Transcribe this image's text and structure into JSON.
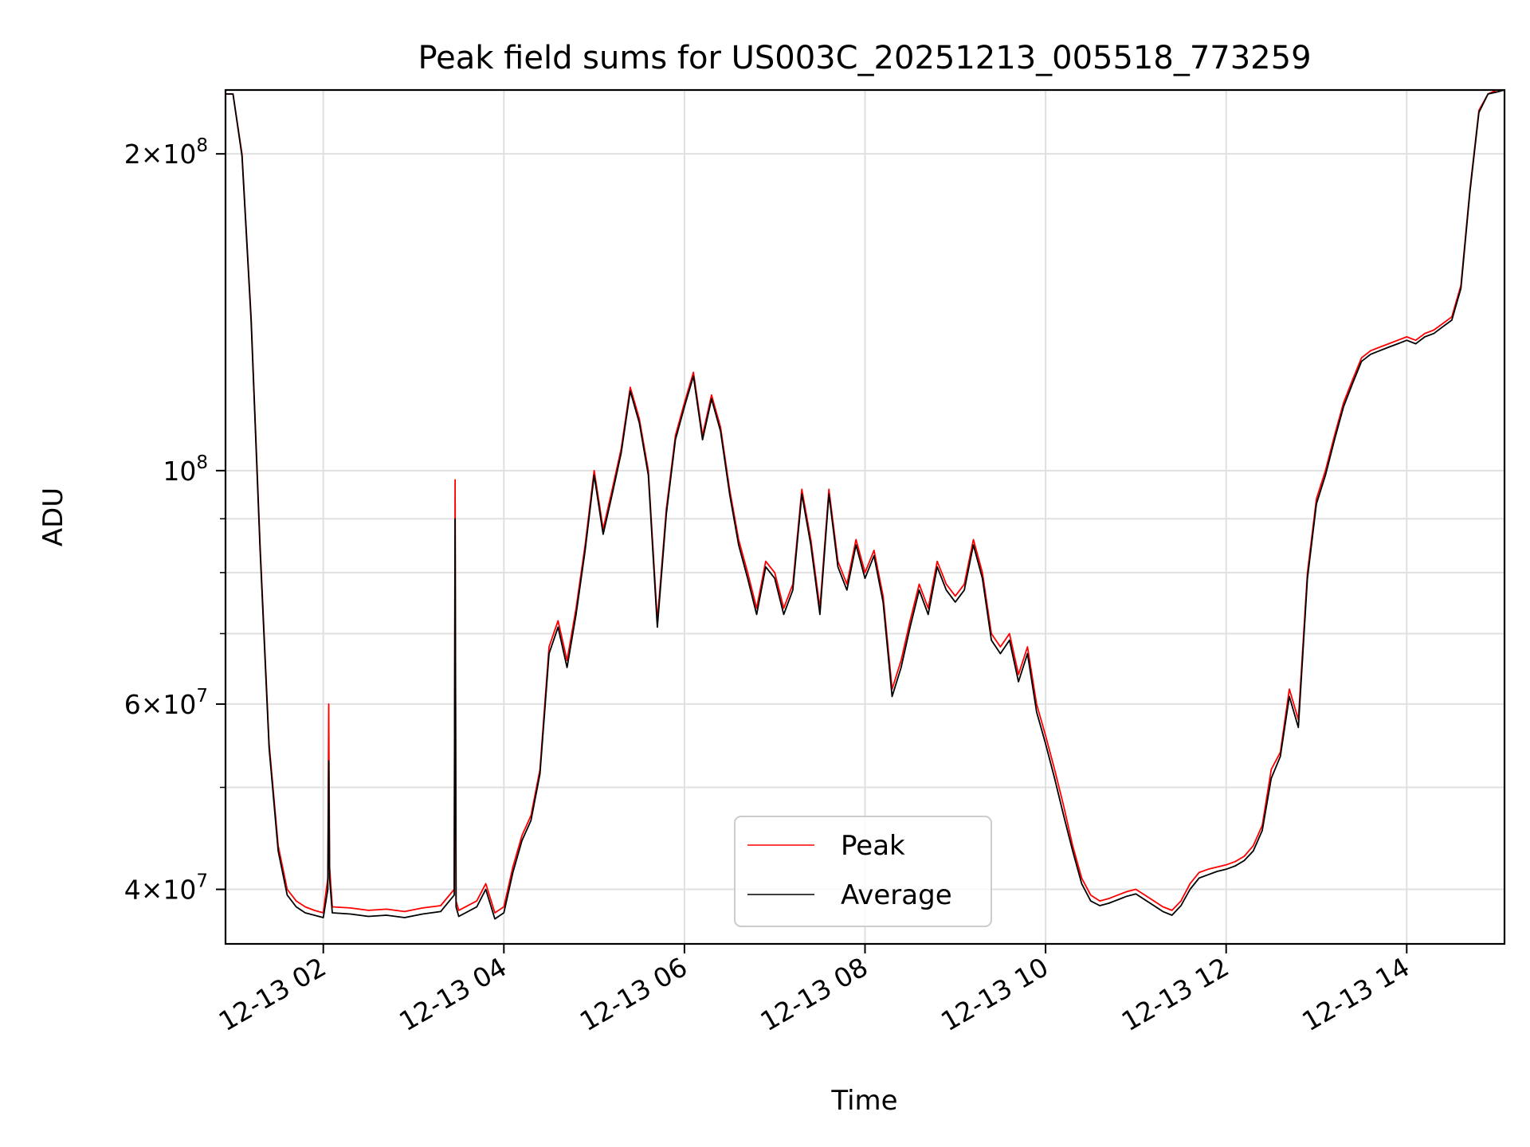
{
  "chart_data": {
    "type": "line",
    "title": "Peak field sums for US003C_20251213_005518_773259",
    "xlabel": "Time",
    "ylabel": "ADU",
    "yscale": "log",
    "xlim_hours": [
      0.917,
      15.083
    ],
    "ylim": [
      35500000,
      230000000
    ],
    "grid": true,
    "x_ticks": [
      {
        "hour": 2,
        "label": "12-13 02"
      },
      {
        "hour": 4,
        "label": "12-13 04"
      },
      {
        "hour": 6,
        "label": "12-13 06"
      },
      {
        "hour": 8,
        "label": "12-13 08"
      },
      {
        "hour": 10,
        "label": "12-13 10"
      },
      {
        "hour": 12,
        "label": "12-13 12"
      },
      {
        "hour": 14,
        "label": "12-13 14"
      }
    ],
    "y_major_ticks": [
      {
        "value": 40000000,
        "mant": "4",
        "exp": "7"
      },
      {
        "value": 60000000,
        "mant": "6",
        "exp": "7"
      },
      {
        "value": 100000000,
        "mant": "",
        "exp": "8"
      },
      {
        "value": 200000000,
        "mant": "2",
        "exp": "8"
      }
    ],
    "y_minor_ticks": [
      50000000,
      70000000,
      80000000,
      90000000
    ],
    "legend": {
      "position": "lower-center",
      "entries": [
        {
          "name": "Peak",
          "color": "#ff0000"
        },
        {
          "name": "Average",
          "color": "#000000"
        }
      ]
    },
    "series": [
      {
        "name": "Peak",
        "color": "#ff0000",
        "x_hours": [
          0.92,
          1.0,
          1.1,
          1.2,
          1.3,
          1.4,
          1.5,
          1.6,
          1.7,
          1.8,
          1.9,
          2.0,
          2.05,
          2.06,
          2.07,
          2.1,
          2.3,
          2.5,
          2.7,
          2.9,
          3.1,
          3.3,
          3.45,
          3.46,
          3.47,
          3.5,
          3.7,
          3.8,
          3.9,
          4.0,
          4.1,
          4.2,
          4.3,
          4.4,
          4.5,
          4.6,
          4.7,
          4.8,
          4.9,
          5.0,
          5.1,
          5.2,
          5.3,
          5.4,
          5.5,
          5.6,
          5.7,
          5.8,
          5.9,
          6.0,
          6.1,
          6.2,
          6.3,
          6.4,
          6.5,
          6.6,
          6.7,
          6.8,
          6.9,
          7.0,
          7.1,
          7.2,
          7.3,
          7.4,
          7.5,
          7.6,
          7.7,
          7.8,
          7.9,
          8.0,
          8.1,
          8.2,
          8.3,
          8.4,
          8.5,
          8.6,
          8.7,
          8.8,
          8.9,
          9.0,
          9.1,
          9.2,
          9.3,
          9.4,
          9.5,
          9.6,
          9.7,
          9.8,
          9.9,
          10.0,
          10.1,
          10.2,
          10.3,
          10.4,
          10.5,
          10.6,
          10.7,
          10.8,
          10.9,
          11.0,
          11.1,
          11.2,
          11.3,
          11.4,
          11.5,
          11.6,
          11.7,
          11.8,
          11.9,
          12.0,
          12.1,
          12.2,
          12.3,
          12.4,
          12.5,
          12.6,
          12.7,
          12.8,
          12.9,
          13.0,
          13.1,
          13.2,
          13.3,
          13.4,
          13.5,
          13.6,
          13.7,
          13.8,
          13.9,
          14.0,
          14.1,
          14.2,
          14.3,
          14.4,
          14.5,
          14.6,
          14.7,
          14.8,
          14.9,
          15.0,
          15.08
        ],
        "values": [
          228000000,
          228000000,
          200000000,
          140000000,
          85000000,
          55000000,
          44000000,
          40000000,
          39000000,
          38500000,
          38200000,
          38000000,
          41000000,
          60000000,
          42000000,
          38500000,
          38400000,
          38200000,
          38300000,
          38100000,
          38400000,
          38600000,
          40000000,
          98000000,
          39000000,
          38200000,
          39000000,
          40500000,
          38000000,
          38500000,
          42000000,
          45000000,
          47000000,
          52000000,
          68000000,
          72000000,
          66000000,
          74000000,
          85000000,
          100000000,
          88000000,
          96000000,
          105000000,
          120000000,
          112000000,
          100000000,
          72000000,
          92000000,
          108000000,
          116000000,
          124000000,
          108000000,
          118000000,
          110000000,
          96000000,
          86000000,
          80000000,
          74000000,
          82000000,
          80000000,
          74000000,
          78000000,
          96000000,
          86000000,
          74000000,
          96000000,
          82000000,
          78000000,
          86000000,
          80000000,
          84000000,
          76000000,
          62000000,
          66000000,
          72000000,
          78000000,
          74000000,
          82000000,
          78000000,
          76000000,
          78000000,
          86000000,
          80000000,
          70000000,
          68000000,
          70000000,
          64000000,
          68000000,
          60000000,
          56000000,
          52000000,
          48000000,
          44000000,
          41000000,
          39500000,
          39000000,
          39200000,
          39500000,
          39800000,
          40000000,
          39500000,
          39000000,
          38500000,
          38200000,
          39000000,
          40500000,
          41500000,
          41800000,
          42000000,
          42200000,
          42500000,
          43000000,
          44000000,
          46000000,
          52000000,
          54000000,
          62000000,
          58000000,
          80000000,
          94000000,
          100000000,
          108000000,
          116000000,
          122000000,
          128000000,
          130000000,
          131000000,
          132000000,
          133000000,
          134000000,
          133000000,
          135000000,
          136000000,
          138000000,
          140000000,
          150000000,
          185000000,
          220000000,
          228000000,
          230000000,
          230000000
        ]
      },
      {
        "name": "Average",
        "color": "#000000",
        "x_hours": [
          0.92,
          1.0,
          1.1,
          1.2,
          1.3,
          1.4,
          1.5,
          1.6,
          1.7,
          1.8,
          1.9,
          2.0,
          2.05,
          2.06,
          2.07,
          2.1,
          2.3,
          2.5,
          2.7,
          2.9,
          3.1,
          3.3,
          3.45,
          3.46,
          3.47,
          3.5,
          3.7,
          3.8,
          3.9,
          4.0,
          4.1,
          4.2,
          4.3,
          4.4,
          4.5,
          4.6,
          4.7,
          4.8,
          4.9,
          5.0,
          5.1,
          5.2,
          5.3,
          5.4,
          5.5,
          5.6,
          5.7,
          5.8,
          5.9,
          6.0,
          6.1,
          6.2,
          6.3,
          6.4,
          6.5,
          6.6,
          6.7,
          6.8,
          6.9,
          7.0,
          7.1,
          7.2,
          7.3,
          7.4,
          7.5,
          7.6,
          7.7,
          7.8,
          7.9,
          8.0,
          8.1,
          8.2,
          8.3,
          8.4,
          8.5,
          8.6,
          8.7,
          8.8,
          8.9,
          9.0,
          9.1,
          9.2,
          9.3,
          9.4,
          9.5,
          9.6,
          9.7,
          9.8,
          9.9,
          10.0,
          10.1,
          10.2,
          10.3,
          10.4,
          10.5,
          10.6,
          10.7,
          10.8,
          10.9,
          11.0,
          11.1,
          11.2,
          11.3,
          11.4,
          11.5,
          11.6,
          11.7,
          11.8,
          11.9,
          12.0,
          12.1,
          12.2,
          12.3,
          12.4,
          12.5,
          12.6,
          12.7,
          12.8,
          12.9,
          13.0,
          13.1,
          13.2,
          13.3,
          13.4,
          13.5,
          13.6,
          13.7,
          13.8,
          13.9,
          14.0,
          14.1,
          14.2,
          14.3,
          14.4,
          14.5,
          14.6,
          14.7,
          14.8,
          14.9,
          15.0,
          15.08
        ],
        "values": [
          228000000,
          228000000,
          199000000,
          139000000,
          84000000,
          54500000,
          43500000,
          39500000,
          38500000,
          38000000,
          37800000,
          37600000,
          40000000,
          53000000,
          41000000,
          38000000,
          37900000,
          37700000,
          37800000,
          37600000,
          37900000,
          38100000,
          39500000,
          90000000,
          38500000,
          37700000,
          38500000,
          40000000,
          37500000,
          38000000,
          41500000,
          44500000,
          46500000,
          51500000,
          67000000,
          71000000,
          65000000,
          73000000,
          84000000,
          99000000,
          87000000,
          95000000,
          104000000,
          119000000,
          111000000,
          99000000,
          71000000,
          91000000,
          107000000,
          115000000,
          123000000,
          107000000,
          117000000,
          109000000,
          95000000,
          85000000,
          79000000,
          73000000,
          81000000,
          79000000,
          73000000,
          77000000,
          95000000,
          85000000,
          73000000,
          95000000,
          81000000,
          77000000,
          85000000,
          79000000,
          83000000,
          75000000,
          61000000,
          65000000,
          71000000,
          77000000,
          73000000,
          81000000,
          77000000,
          75000000,
          77000000,
          85000000,
          79000000,
          69000000,
          67000000,
          69000000,
          63000000,
          67000000,
          59000000,
          55000000,
          51000000,
          47000000,
          43500000,
          40500000,
          39000000,
          38600000,
          38800000,
          39100000,
          39400000,
          39600000,
          39100000,
          38600000,
          38100000,
          37800000,
          38600000,
          40000000,
          41000000,
          41300000,
          41600000,
          41800000,
          42100000,
          42600000,
          43500000,
          45500000,
          51000000,
          53500000,
          61000000,
          57000000,
          79000000,
          93000000,
          99000000,
          107000000,
          115000000,
          121000000,
          127000000,
          129000000,
          130000000,
          131000000,
          132000000,
          133000000,
          132000000,
          134000000,
          135000000,
          137000000,
          139000000,
          149000000,
          184000000,
          219000000,
          228000000,
          229000000,
          230000000
        ]
      }
    ]
  }
}
